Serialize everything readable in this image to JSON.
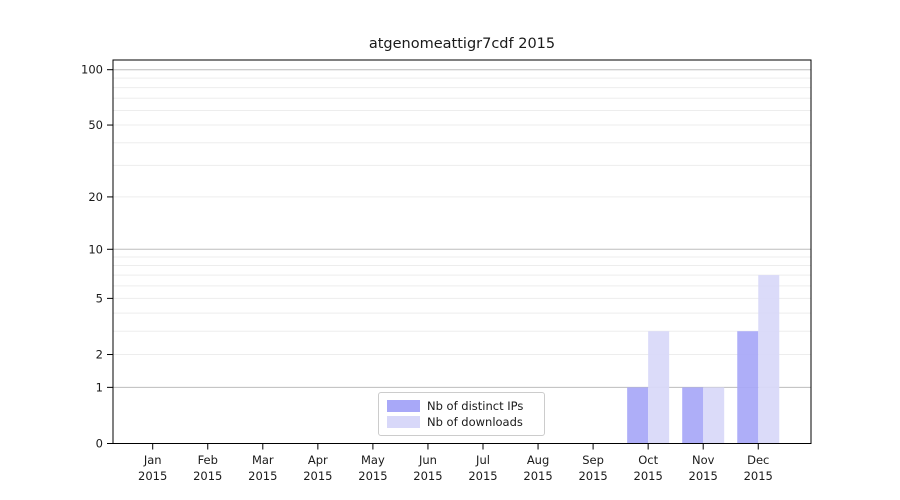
{
  "chart_data": {
    "type": "bar",
    "title": "atgenomeattigr7cdf 2015",
    "categories": [
      "Jan 2015",
      "Feb 2015",
      "Mar 2015",
      "Apr 2015",
      "May 2015",
      "Jun 2015",
      "Jul 2015",
      "Aug 2015",
      "Sep 2015",
      "Oct 2015",
      "Nov 2015",
      "Dec 2015"
    ],
    "series": [
      {
        "name": "Nb of distinct IPs",
        "color": "#a8a8f8",
        "values": [
          0,
          0,
          0,
          0,
          0,
          0,
          0,
          0,
          0,
          1,
          1,
          3
        ]
      },
      {
        "name": "Nb of downloads",
        "color": "#d8d8f9",
        "values": [
          0,
          0,
          0,
          0,
          0,
          0,
          0,
          0,
          0,
          3,
          1,
          7
        ]
      }
    ],
    "y_axis": {
      "scale": "log1p",
      "tick_values": [
        0,
        1,
        2,
        5,
        10,
        20,
        50,
        100
      ],
      "major_grid_values": [
        1,
        10,
        100
      ],
      "minor_grid_values": [
        2,
        3,
        4,
        5,
        6,
        7,
        8,
        9,
        20,
        30,
        40,
        50,
        60,
        70,
        80,
        90
      ],
      "range_max": 113
    },
    "legend_position": "lower center",
    "grid": "horizontal"
  },
  "colors": {
    "grid_major": "#bdbdbd",
    "grid_minor": "#ededed",
    "spine": "#000000",
    "text": "#1a1a1a",
    "background": "#ffffff"
  }
}
